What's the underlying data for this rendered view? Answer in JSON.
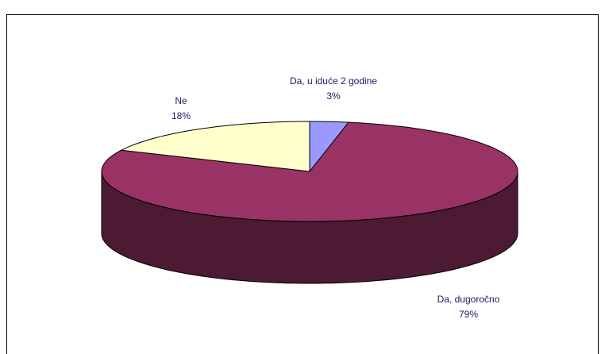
{
  "chart_data": {
    "type": "pie3d",
    "categories": [
      "Da, u iduće 2 godine",
      "Da, dugoročno",
      "Ne"
    ],
    "values": [
      3,
      79,
      18
    ],
    "value_labels": [
      "3%",
      "79%",
      "18%"
    ],
    "colors": [
      "#9999ff",
      "#993366",
      "#ffffcc"
    ]
  }
}
